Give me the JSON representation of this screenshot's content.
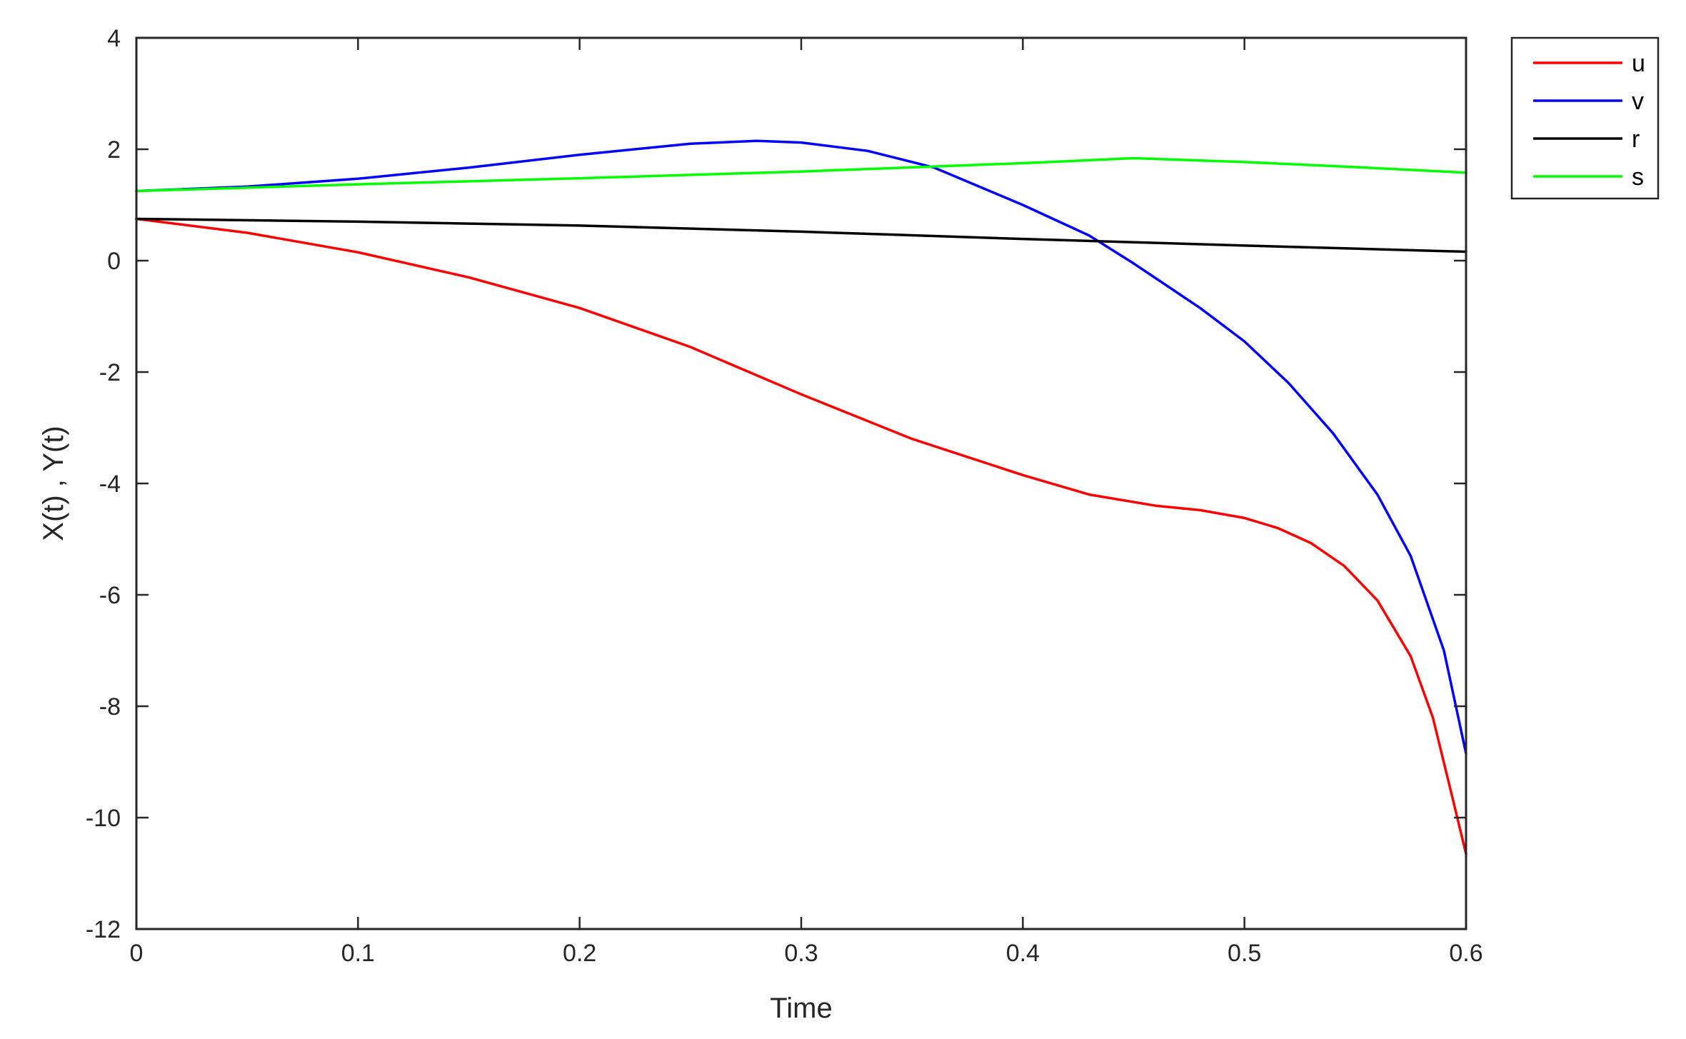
{
  "chart_data": {
    "type": "line",
    "title": "",
    "xlabel": "Time",
    "ylabel": "X(t) , Y(t)",
    "xlim": [
      0,
      0.6
    ],
    "ylim": [
      -12,
      4
    ],
    "xticks": [
      0,
      0.1,
      0.2,
      0.3,
      0.4,
      0.5,
      0.6
    ],
    "xtick_labels": [
      "0",
      "0.1",
      "0.2",
      "0.3",
      "0.4",
      "0.5",
      "0.6"
    ],
    "yticks": [
      -12,
      -10,
      -8,
      -6,
      -4,
      -2,
      0,
      2,
      4
    ],
    "ytick_labels": [
      "-12",
      "-10",
      "-8",
      "-6",
      "-4",
      "-2",
      "0",
      "2",
      "4"
    ],
    "grid": false,
    "legend_position": "outside-top-right",
    "series": [
      {
        "name": "u",
        "color": "#ff0000",
        "x": [
          0,
          0.05,
          0.1,
          0.15,
          0.2,
          0.25,
          0.3,
          0.35,
          0.4,
          0.43,
          0.46,
          0.48,
          0.5,
          0.515,
          0.53,
          0.545,
          0.56,
          0.575,
          0.585,
          0.593,
          0.6
        ],
        "y": [
          0.75,
          0.5,
          0.15,
          -0.3,
          -0.85,
          -1.55,
          -2.4,
          -3.2,
          -3.85,
          -4.2,
          -4.4,
          -4.48,
          -4.62,
          -4.8,
          -5.07,
          -5.48,
          -6.1,
          -7.1,
          -8.2,
          -9.5,
          -10.65
        ]
      },
      {
        "name": "v",
        "color": "#0000ff",
        "x": [
          0,
          0.05,
          0.1,
          0.15,
          0.2,
          0.25,
          0.28,
          0.3,
          0.33,
          0.36,
          0.4,
          0.43,
          0.45,
          0.48,
          0.5,
          0.52,
          0.54,
          0.56,
          0.575,
          0.59,
          0.6
        ],
        "y": [
          1.25,
          1.33,
          1.47,
          1.67,
          1.9,
          2.1,
          2.15,
          2.12,
          1.97,
          1.67,
          1.0,
          0.45,
          -0.05,
          -0.85,
          -1.45,
          -2.2,
          -3.1,
          -4.2,
          -5.3,
          -7.0,
          -8.85
        ]
      },
      {
        "name": "r",
        "color": "#000000",
        "x": [
          0,
          0.1,
          0.2,
          0.3,
          0.4,
          0.5,
          0.6
        ],
        "y": [
          0.75,
          0.7,
          0.63,
          0.52,
          0.39,
          0.27,
          0.16
        ]
      },
      {
        "name": "s",
        "color": "#00ff00",
        "x": [
          0,
          0.1,
          0.2,
          0.3,
          0.4,
          0.45,
          0.5,
          0.55,
          0.6
        ],
        "y": [
          1.25,
          1.37,
          1.48,
          1.6,
          1.75,
          1.84,
          1.77,
          1.68,
          1.58
        ]
      }
    ]
  }
}
